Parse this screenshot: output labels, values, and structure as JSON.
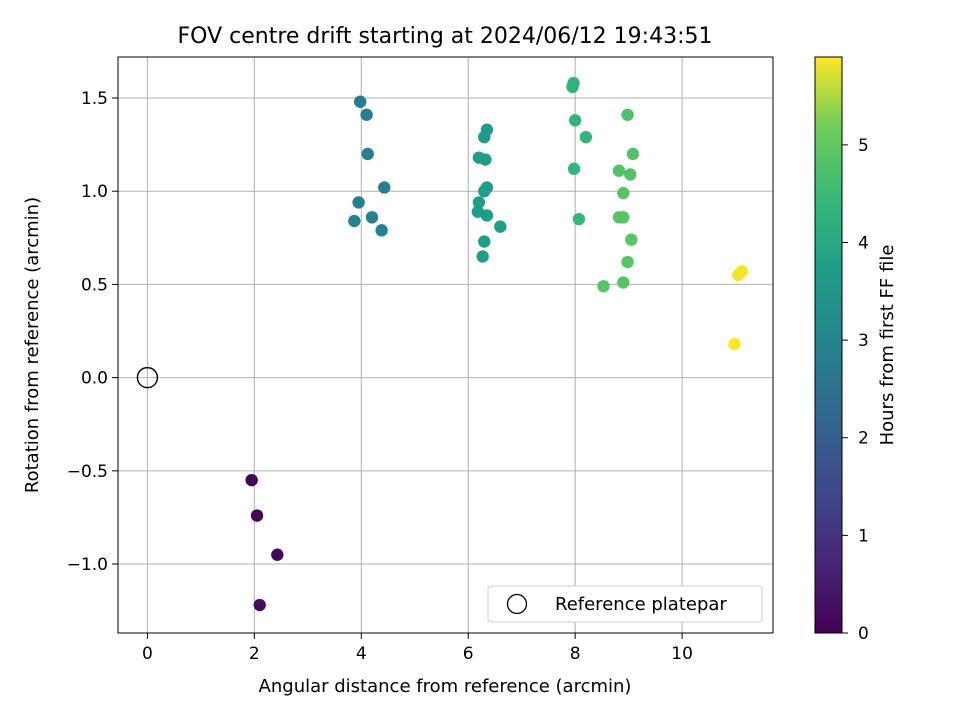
{
  "chart_data": {
    "type": "scatter",
    "title": "FOV centre drift starting at 2024/06/12 19:43:51",
    "xlabel": "Angular distance from reference (arcmin)",
    "ylabel": "Rotation from reference (arcmin)",
    "xlim": [
      -0.55,
      11.7
    ],
    "ylim": [
      -1.37,
      1.72
    ],
    "x_ticks": [
      0,
      2,
      4,
      6,
      8,
      10
    ],
    "x_tick_labels": [
      "0",
      "2",
      "4",
      "6",
      "8",
      "10"
    ],
    "y_ticks": [
      -1.0,
      -0.5,
      0.0,
      0.5,
      1.0,
      1.5
    ],
    "y_tick_labels": [
      "−1.0",
      "−0.5",
      "0.0",
      "0.5",
      "1.0",
      "1.5"
    ],
    "grid": true,
    "colormap": "viridis",
    "colorbar": {
      "label": "Hours from first FF file",
      "range": [
        0,
        5.9
      ],
      "ticks": [
        0,
        1,
        2,
        3,
        4,
        5
      ],
      "tick_labels": [
        "0",
        "1",
        "2",
        "3",
        "4",
        "5"
      ]
    },
    "legend": {
      "position": "lower right",
      "entries": [
        {
          "label": "Reference platepar",
          "marker": "open-circle"
        }
      ]
    },
    "reference_point": {
      "x": 0,
      "y": 0
    },
    "series": [
      {
        "points": [
          {
            "x": 1.95,
            "y": -0.55,
            "c": 0.05
          },
          {
            "x": 2.05,
            "y": -0.74,
            "c": 0.1
          },
          {
            "x": 2.43,
            "y": -0.95,
            "c": 0.15
          },
          {
            "x": 2.1,
            "y": -1.22,
            "c": 0.2
          },
          {
            "x": 3.98,
            "y": 1.48,
            "c": 2.8
          },
          {
            "x": 4.1,
            "y": 1.41,
            "c": 2.85
          },
          {
            "x": 4.12,
            "y": 1.2,
            "c": 2.85
          },
          {
            "x": 4.43,
            "y": 1.02,
            "c": 2.9
          },
          {
            "x": 3.95,
            "y": 0.94,
            "c": 2.9
          },
          {
            "x": 4.2,
            "y": 0.86,
            "c": 2.9
          },
          {
            "x": 3.87,
            "y": 0.84,
            "c": 2.95
          },
          {
            "x": 4.38,
            "y": 0.79,
            "c": 2.95
          },
          {
            "x": 6.35,
            "y": 1.33,
            "c": 3.6
          },
          {
            "x": 6.3,
            "y": 1.29,
            "c": 3.6
          },
          {
            "x": 6.2,
            "y": 1.18,
            "c": 3.65
          },
          {
            "x": 6.32,
            "y": 1.17,
            "c": 3.65
          },
          {
            "x": 6.35,
            "y": 1.02,
            "c": 3.65
          },
          {
            "x": 6.3,
            "y": 1.0,
            "c": 3.7
          },
          {
            "x": 6.2,
            "y": 0.94,
            "c": 3.7
          },
          {
            "x": 6.18,
            "y": 0.89,
            "c": 3.7
          },
          {
            "x": 6.35,
            "y": 0.87,
            "c": 3.7
          },
          {
            "x": 6.6,
            "y": 0.81,
            "c": 3.75
          },
          {
            "x": 6.3,
            "y": 0.73,
            "c": 3.75
          },
          {
            "x": 6.27,
            "y": 0.65,
            "c": 3.75
          },
          {
            "x": 7.97,
            "y": 1.58,
            "c": 4.3
          },
          {
            "x": 7.95,
            "y": 1.56,
            "c": 4.3
          },
          {
            "x": 8.0,
            "y": 1.38,
            "c": 4.35
          },
          {
            "x": 8.2,
            "y": 1.29,
            "c": 4.35
          },
          {
            "x": 7.98,
            "y": 1.12,
            "c": 4.4
          },
          {
            "x": 8.07,
            "y": 0.85,
            "c": 4.4
          },
          {
            "x": 8.98,
            "y": 1.41,
            "c": 4.75
          },
          {
            "x": 9.08,
            "y": 1.2,
            "c": 4.8
          },
          {
            "x": 8.82,
            "y": 1.11,
            "c": 4.8
          },
          {
            "x": 9.03,
            "y": 1.09,
            "c": 4.8
          },
          {
            "x": 8.9,
            "y": 0.99,
            "c": 4.85
          },
          {
            "x": 8.82,
            "y": 0.86,
            "c": 4.85
          },
          {
            "x": 8.9,
            "y": 0.86,
            "c": 4.85
          },
          {
            "x": 9.05,
            "y": 0.74,
            "c": 4.9
          },
          {
            "x": 8.98,
            "y": 0.62,
            "c": 4.9
          },
          {
            "x": 8.9,
            "y": 0.51,
            "c": 4.9
          },
          {
            "x": 8.53,
            "y": 0.49,
            "c": 4.9
          },
          {
            "x": 11.12,
            "y": 0.57,
            "c": 5.85
          },
          {
            "x": 11.05,
            "y": 0.55,
            "c": 5.85
          },
          {
            "x": 10.98,
            "y": 0.18,
            "c": 5.9
          }
        ]
      }
    ]
  }
}
